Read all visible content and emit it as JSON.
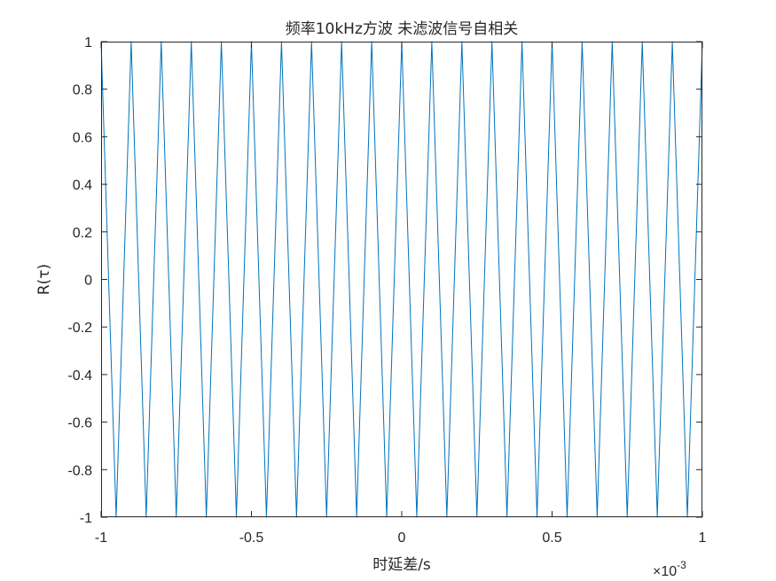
{
  "chart_data": {
    "type": "line",
    "title": "频率10kHz方波 未滤波信号自相关",
    "xlabel": "时延差/s",
    "ylabel": "R(τ)",
    "x_exponent_label": {
      "base": "×10",
      "exponent": "-3"
    },
    "xlim": [
      -0.001,
      0.001
    ],
    "ylim": [
      -1,
      1
    ],
    "x_tick_values": [
      -0.001,
      -0.0005,
      0,
      0.0005,
      0.001
    ],
    "x_tick_labels": [
      "-1",
      "-0.5",
      "0",
      "0.5",
      "1"
    ],
    "y_tick_values": [
      -1,
      -0.8,
      -0.6,
      -0.4,
      -0.2,
      0,
      0.2,
      0.4,
      0.6,
      0.8,
      1
    ],
    "y_tick_labels": [
      "-1",
      "-0.8",
      "-0.6",
      "-0.4",
      "-0.2",
      "0",
      "0.2",
      "0.4",
      "0.6",
      "0.8",
      "1"
    ],
    "grid": false,
    "series": [
      {
        "color": "#0072bd",
        "x": [
          -0.001,
          -0.00095,
          -0.0009,
          -0.00085,
          -0.0008,
          -0.00075,
          -0.0007,
          -0.00065,
          -0.0006,
          -0.00055,
          -0.0005,
          -0.00045,
          -0.0004,
          -0.00035,
          -0.0003,
          -0.00025,
          -0.0002,
          -0.00015,
          -0.0001,
          -5e-05,
          0,
          5e-05,
          0.0001,
          0.00015,
          0.0002,
          0.00025,
          0.0003,
          0.00035,
          0.0004,
          0.00045,
          0.0005,
          0.00055,
          0.0006,
          0.00065,
          0.0007,
          0.00075,
          0.0008,
          0.00085,
          0.0009,
          0.00095,
          0.001
        ],
        "y": [
          1,
          -1,
          1,
          -1,
          1,
          -1,
          1,
          -1,
          1,
          -1,
          1,
          -1,
          1,
          -1,
          1,
          -1,
          1,
          -1,
          1,
          -1,
          1,
          -1,
          1,
          -1,
          1,
          -1,
          1,
          -1,
          1,
          -1,
          1,
          -1,
          1,
          -1,
          1,
          -1,
          1,
          -1,
          1,
          -1,
          1
        ]
      }
    ]
  }
}
